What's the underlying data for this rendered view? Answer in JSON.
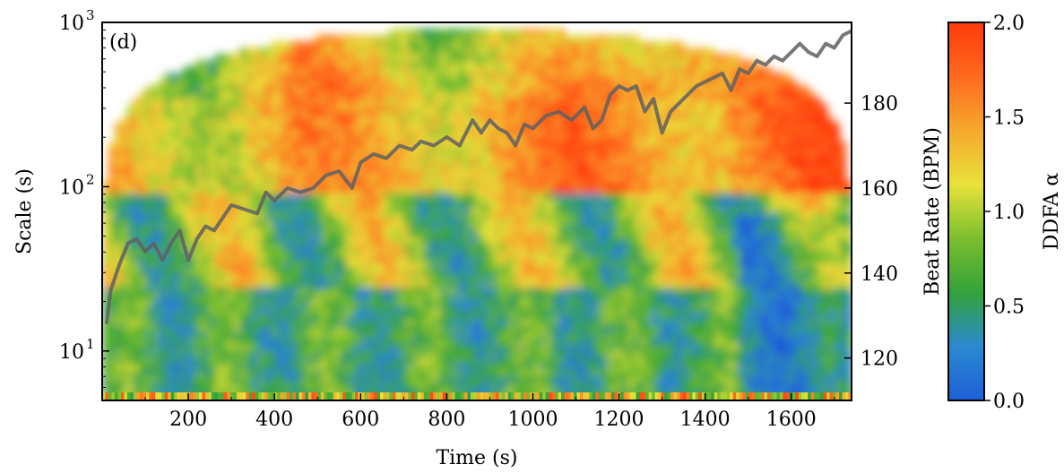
{
  "chart_data": {
    "type": "heatmap",
    "panel_label": "(d)",
    "xlabel": "Time (s)",
    "ylabel": "Scale (s)",
    "y2label": "Beat Rate (BPM)",
    "colorbar_label": "DDFA α",
    "xlim": [
      0,
      1740
    ],
    "ylim": [
      5,
      1000
    ],
    "yscale": "log",
    "y2lim": [
      110,
      199
    ],
    "clim": [
      0.0,
      2.0
    ],
    "colormap": [
      "#1e5ed6",
      "#2b8ad0",
      "#33a23a",
      "#7bbf2e",
      "#e8e23a",
      "#f6a82d",
      "#ff6a1e",
      "#ff3a0a"
    ],
    "x_ticks": [
      "200",
      "400",
      "600",
      "800",
      "1000",
      "1200",
      "1400",
      "1600"
    ],
    "x_tick_values": [
      200,
      400,
      600,
      800,
      1000,
      1200,
      1400,
      1600
    ],
    "y_ticks": [
      {
        "value": 10,
        "base": "10",
        "exp": "1"
      },
      {
        "value": 100,
        "base": "10",
        "exp": "2"
      },
      {
        "value": 1000,
        "base": "10",
        "exp": "3"
      }
    ],
    "y2_ticks": [
      "120",
      "140",
      "160",
      "180"
    ],
    "y2_tick_values": [
      120,
      140,
      160,
      180
    ],
    "colorbar_ticks": [
      "0.0",
      "0.5",
      "1.0",
      "1.5",
      "2.0"
    ],
    "colorbar_tick_values": [
      0.0,
      0.5,
      1.0,
      1.5,
      2.0
    ],
    "series": [
      {
        "type": "line",
        "color": "#606060",
        "t": [
          10,
          20,
          40,
          60,
          80,
          100,
          120,
          140,
          160,
          180,
          200,
          220,
          240,
          260,
          280,
          300,
          330,
          360,
          380,
          400,
          430,
          460,
          490,
          520,
          550,
          580,
          600,
          630,
          660,
          690,
          720,
          740,
          770,
          800,
          830,
          860,
          880,
          900,
          920,
          940,
          960,
          980,
          1000,
          1030,
          1060,
          1090,
          1120,
          1140,
          1160,
          1180,
          1200,
          1220,
          1240,
          1260,
          1280,
          1300,
          1320,
          1340,
          1360,
          1380,
          1400,
          1420,
          1440,
          1460,
          1480,
          1500,
          1520,
          1540,
          1560,
          1580,
          1600,
          1620,
          1640,
          1660,
          1680,
          1700,
          1720,
          1740
        ],
        "bpm": [
          128,
          136,
          142,
          147,
          148,
          145,
          147,
          143,
          147,
          150,
          143,
          148,
          151,
          150,
          153,
          156,
          155,
          154,
          159,
          157,
          160,
          159,
          160,
          163,
          164,
          160,
          166,
          168,
          167,
          170,
          169,
          171,
          170,
          172,
          170,
          176,
          173,
          176,
          174,
          173,
          170,
          175,
          174,
          177,
          178,
          176,
          179,
          174,
          176,
          182,
          184,
          183,
          184,
          178,
          181,
          173,
          178,
          180,
          182,
          184,
          185,
          186,
          187,
          183,
          188,
          187,
          190,
          189,
          191,
          190,
          192,
          194,
          192,
          191,
          194,
          193,
          196,
          197
        ]
      }
    ]
  }
}
